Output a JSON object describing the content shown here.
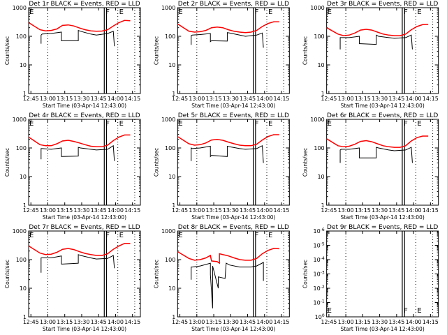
{
  "chart_data": {
    "type": "line",
    "layout": "3x3 grid",
    "x_range": [
      "12:43",
      "14:22"
    ],
    "x_ticks": [
      "12:45",
      "13:00",
      "13:15",
      "13:30",
      "13:45",
      "14:00",
      "14:15"
    ],
    "xlabel": "Start Time (03-Apr-14 12:43:00)",
    "ylabel": "Counts/sec",
    "y_scale": "log",
    "series_colors": {
      "events": "#000000",
      "lld": "#ff0000"
    },
    "dotted_lines": [
      "13:00",
      "14:02",
      "14:17"
    ],
    "solid_lines": [
      "13:50",
      "13:52"
    ],
    "markers": [
      {
        "label": "E",
        "time": "12:43"
      },
      {
        "label": "F",
        "time": "13:50"
      },
      {
        "label": "E",
        "time": "14:02"
      }
    ],
    "panels": [
      {
        "title": "Det 1r BLACK = Events, RED = LLD",
        "ylim": [
          1,
          1000
        ],
        "y_ticks": [
          "1",
          "10",
          "100",
          "1000"
        ],
        "lld": [
          [
            0,
            300
          ],
          [
            10,
            170
          ],
          [
            15,
            155
          ],
          [
            20,
            160
          ],
          [
            25,
            180
          ],
          [
            30,
            240
          ],
          [
            35,
            250
          ],
          [
            40,
            230
          ],
          [
            45,
            195
          ],
          [
            50,
            170
          ],
          [
            55,
            155
          ],
          [
            60,
            150
          ],
          [
            65,
            152
          ],
          [
            70,
            170
          ],
          [
            75,
            230
          ],
          [
            80,
            300
          ],
          [
            85,
            360
          ],
          [
            90,
            350
          ]
        ],
        "events": [
          [
            11,
            55
          ],
          [
            11,
            110
          ],
          [
            12,
            120
          ],
          [
            20,
            125
          ],
          [
            29,
            140
          ],
          [
            29,
            70
          ],
          [
            30,
            70
          ],
          [
            44,
            70
          ],
          [
            44,
            160
          ],
          [
            46,
            150
          ],
          [
            55,
            120
          ],
          [
            60,
            110
          ],
          [
            70,
            125
          ],
          [
            75,
            150
          ],
          [
            76,
            45
          ]
        ]
      },
      {
        "title": "Det 2r BLACK = Events, RED = LLD",
        "ylim": [
          1,
          1000
        ],
        "y_ticks": [
          "1",
          "10",
          "100",
          "1000"
        ],
        "lld": [
          [
            0,
            270
          ],
          [
            10,
            150
          ],
          [
            15,
            140
          ],
          [
            20,
            145
          ],
          [
            25,
            160
          ],
          [
            30,
            200
          ],
          [
            35,
            210
          ],
          [
            40,
            200
          ],
          [
            45,
            170
          ],
          [
            50,
            150
          ],
          [
            55,
            140
          ],
          [
            60,
            135
          ],
          [
            65,
            140
          ],
          [
            70,
            160
          ],
          [
            75,
            220
          ],
          [
            80,
            280
          ],
          [
            85,
            320
          ],
          [
            90,
            320
          ]
        ],
        "events": [
          [
            12,
            50
          ],
          [
            12,
            105
          ],
          [
            13,
            110
          ],
          [
            20,
            115
          ],
          [
            29,
            125
          ],
          [
            29,
            65
          ],
          [
            30,
            70
          ],
          [
            44,
            68
          ],
          [
            44,
            135
          ],
          [
            46,
            130
          ],
          [
            55,
            110
          ],
          [
            60,
            100
          ],
          [
            70,
            110
          ],
          [
            75,
            130
          ],
          [
            76,
            40
          ]
        ]
      },
      {
        "title": "Det 3r BLACK = Events, RED = LLD",
        "ylim": [
          1,
          1000
        ],
        "y_ticks": [
          "1",
          "10",
          "100",
          "1000"
        ],
        "lld": [
          [
            0,
            200
          ],
          [
            10,
            120
          ],
          [
            15,
            105
          ],
          [
            20,
            110
          ],
          [
            25,
            130
          ],
          [
            30,
            165
          ],
          [
            35,
            175
          ],
          [
            40,
            165
          ],
          [
            45,
            140
          ],
          [
            50,
            120
          ],
          [
            55,
            110
          ],
          [
            60,
            105
          ],
          [
            65,
            105
          ],
          [
            70,
            120
          ],
          [
            75,
            170
          ],
          [
            80,
            220
          ],
          [
            85,
            255
          ],
          [
            90,
            260
          ]
        ],
        "events": [
          [
            12,
            35
          ],
          [
            12,
            90
          ],
          [
            13,
            90
          ],
          [
            20,
            90
          ],
          [
            29,
            100
          ],
          [
            29,
            55
          ],
          [
            30,
            55
          ],
          [
            44,
            52
          ],
          [
            44,
            110
          ],
          [
            46,
            100
          ],
          [
            55,
            90
          ],
          [
            60,
            85
          ],
          [
            70,
            90
          ],
          [
            75,
            110
          ],
          [
            76,
            35
          ]
        ]
      },
      {
        "title": "Det 4r BLACK = Events, RED = LLD",
        "ylim": [
          1,
          1000
        ],
        "y_ticks": [
          "1",
          "10",
          "100",
          "1000"
        ],
        "lld": [
          [
            0,
            240
          ],
          [
            10,
            130
          ],
          [
            15,
            120
          ],
          [
            20,
            120
          ],
          [
            25,
            140
          ],
          [
            30,
            175
          ],
          [
            35,
            185
          ],
          [
            40,
            170
          ],
          [
            45,
            150
          ],
          [
            50,
            130
          ],
          [
            55,
            115
          ],
          [
            60,
            110
          ],
          [
            65,
            110
          ],
          [
            70,
            125
          ],
          [
            75,
            180
          ],
          [
            80,
            240
          ],
          [
            85,
            285
          ],
          [
            90,
            285
          ]
        ],
        "events": [
          [
            11,
            40
          ],
          [
            11,
            95
          ],
          [
            12,
            95
          ],
          [
            20,
            90
          ],
          [
            29,
            100
          ],
          [
            29,
            50
          ],
          [
            30,
            50
          ],
          [
            44,
            52
          ],
          [
            44,
            105
          ],
          [
            46,
            100
          ],
          [
            55,
            90
          ],
          [
            60,
            85
          ],
          [
            70,
            90
          ],
          [
            75,
            120
          ],
          [
            76,
            35
          ]
        ]
      },
      {
        "title": "Det 5r BLACK = Events, RED = LLD",
        "ylim": [
          1,
          1000
        ],
        "y_ticks": [
          "1",
          "10",
          "100",
          "1000"
        ],
        "lld": [
          [
            0,
            250
          ],
          [
            10,
            140
          ],
          [
            15,
            125
          ],
          [
            20,
            130
          ],
          [
            25,
            150
          ],
          [
            30,
            190
          ],
          [
            35,
            200
          ],
          [
            40,
            185
          ],
          [
            45,
            160
          ],
          [
            50,
            140
          ],
          [
            55,
            125
          ],
          [
            60,
            120
          ],
          [
            65,
            120
          ],
          [
            70,
            135
          ],
          [
            75,
            190
          ],
          [
            80,
            250
          ],
          [
            85,
            290
          ],
          [
            90,
            290
          ]
        ],
        "events": [
          [
            12,
            35
          ],
          [
            12,
            100
          ],
          [
            13,
            95
          ],
          [
            20,
            100
          ],
          [
            29,
            115
          ],
          [
            29,
            50
          ],
          [
            30,
            55
          ],
          [
            44,
            50
          ],
          [
            44,
            115
          ],
          [
            46,
            110
          ],
          [
            55,
            95
          ],
          [
            60,
            90
          ],
          [
            70,
            95
          ],
          [
            75,
            120
          ],
          [
            76,
            30
          ]
        ]
      },
      {
        "title": "Det 6r BLACK = Events, RED = LLD",
        "ylim": [
          1,
          1000
        ],
        "y_ticks": [
          "1",
          "10",
          "100",
          "1000"
        ],
        "lld": [
          [
            0,
            210
          ],
          [
            10,
            120
          ],
          [
            15,
            110
          ],
          [
            20,
            115
          ],
          [
            25,
            135
          ],
          [
            30,
            170
          ],
          [
            35,
            180
          ],
          [
            40,
            165
          ],
          [
            45,
            140
          ],
          [
            50,
            120
          ],
          [
            55,
            110
          ],
          [
            60,
            105
          ],
          [
            65,
            105
          ],
          [
            70,
            120
          ],
          [
            75,
            175
          ],
          [
            80,
            230
          ],
          [
            85,
            260
          ],
          [
            90,
            260
          ]
        ],
        "events": [
          [
            12,
            30
          ],
          [
            12,
            85
          ],
          [
            13,
            90
          ],
          [
            20,
            90
          ],
          [
            29,
            100
          ],
          [
            29,
            45
          ],
          [
            30,
            45
          ],
          [
            44,
            45
          ],
          [
            44,
            105
          ],
          [
            46,
            100
          ],
          [
            55,
            85
          ],
          [
            60,
            80
          ],
          [
            70,
            85
          ],
          [
            75,
            105
          ],
          [
            76,
            30
          ]
        ]
      },
      {
        "title": "Det 7r BLACK = Events, RED = LLD",
        "ylim": [
          1,
          1000
        ],
        "y_ticks": [
          "1",
          "10",
          "100",
          "1000"
        ],
        "lld": [
          [
            0,
            300
          ],
          [
            10,
            170
          ],
          [
            15,
            150
          ],
          [
            20,
            155
          ],
          [
            25,
            180
          ],
          [
            30,
            230
          ],
          [
            35,
            245
          ],
          [
            40,
            225
          ],
          [
            45,
            190
          ],
          [
            50,
            165
          ],
          [
            55,
            150
          ],
          [
            60,
            140
          ],
          [
            65,
            140
          ],
          [
            70,
            160
          ],
          [
            75,
            230
          ],
          [
            80,
            300
          ],
          [
            85,
            370
          ],
          [
            90,
            370
          ]
        ],
        "events": [
          [
            11,
            35
          ],
          [
            11,
            115
          ],
          [
            12,
            115
          ],
          [
            20,
            115
          ],
          [
            29,
            135
          ],
          [
            29,
            70
          ],
          [
            30,
            70
          ],
          [
            44,
            75
          ],
          [
            44,
            150
          ],
          [
            46,
            140
          ],
          [
            55,
            115
          ],
          [
            60,
            105
          ],
          [
            70,
            110
          ],
          [
            75,
            140
          ],
          [
            76,
            50
          ]
        ]
      },
      {
        "title": "Det 8r BLACK = Events, RED = LLD",
        "ylim": [
          1,
          1000
        ],
        "y_ticks": [
          "1",
          "10",
          "100",
          "1000"
        ],
        "lld": [
          [
            0,
            190
          ],
          [
            10,
            110
          ],
          [
            15,
            95
          ],
          [
            20,
            100
          ],
          [
            25,
            115
          ],
          [
            29,
            140
          ],
          [
            30,
            90
          ],
          [
            35,
            85
          ],
          [
            37,
            75
          ],
          [
            37,
            160
          ],
          [
            45,
            135
          ],
          [
            50,
            115
          ],
          [
            55,
            100
          ],
          [
            60,
            95
          ],
          [
            65,
            95
          ],
          [
            70,
            110
          ],
          [
            75,
            160
          ],
          [
            80,
            210
          ],
          [
            85,
            245
          ],
          [
            90,
            240
          ]
        ],
        "events": [
          [
            12,
            20
          ],
          [
            12,
            55
          ],
          [
            13,
            55
          ],
          [
            20,
            60
          ],
          [
            29,
            75
          ],
          [
            29,
            30
          ],
          [
            31,
            2
          ],
          [
            31,
            60
          ],
          [
            36,
            10
          ],
          [
            36,
            25
          ],
          [
            42,
            22
          ],
          [
            43,
            75
          ],
          [
            46,
            65
          ],
          [
            55,
            55
          ],
          [
            65,
            55
          ],
          [
            70,
            60
          ],
          [
            76,
            80
          ],
          [
            76,
            18
          ]
        ]
      },
      {
        "title": "Det 9r BLACK = Events, RED = LLD",
        "ylim": [
          1,
          1e-06
        ],
        "y_ticks": [
          "10^0",
          "10^-1",
          "10^-2",
          "10^-3",
          "10^-4",
          "10^-5",
          "10^-6"
        ],
        "lld": [],
        "events": []
      }
    ]
  }
}
